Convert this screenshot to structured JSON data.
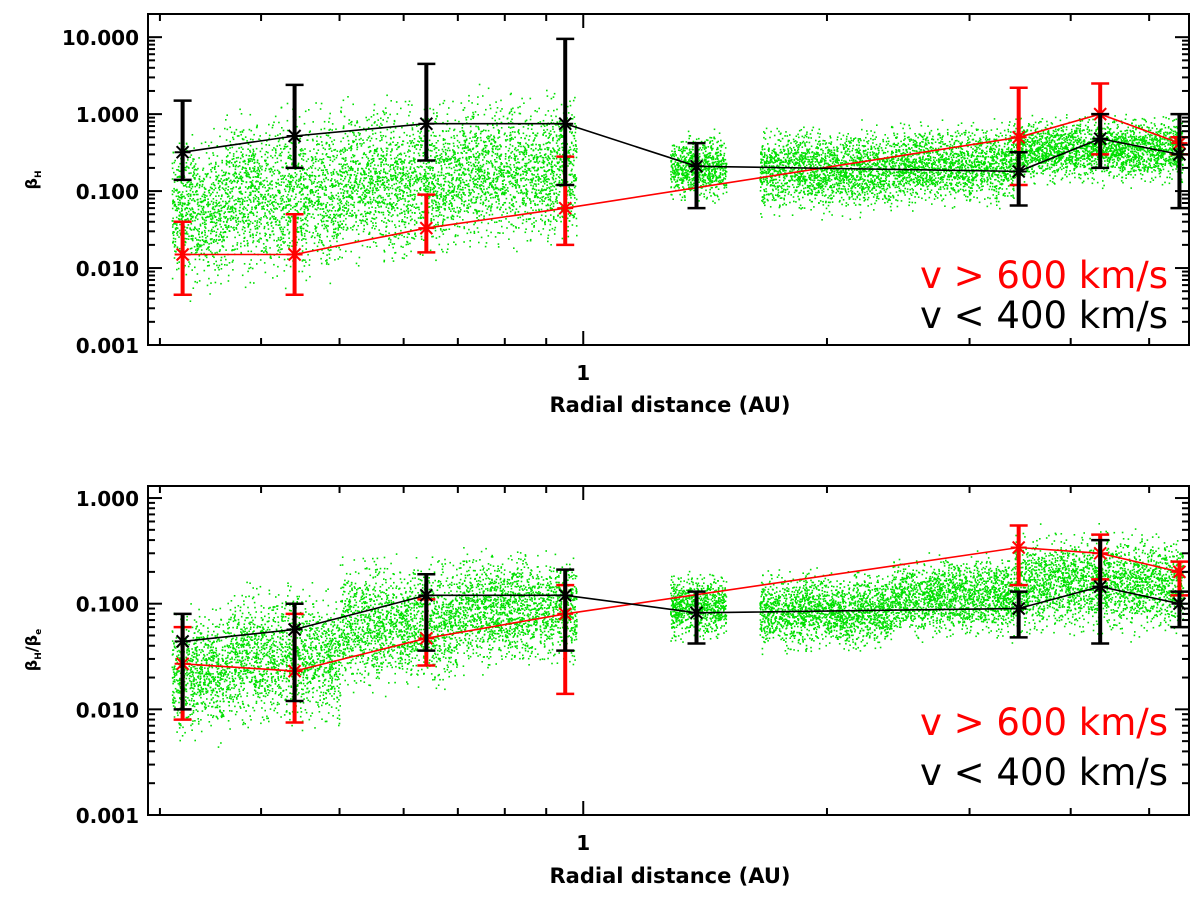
{
  "colors": {
    "background": "#ffffff",
    "fast": "#ff0000",
    "slow": "#000000",
    "scatter": "#00e000",
    "axis": "#000000"
  },
  "chart_data": [
    {
      "type": "scatter",
      "xscale": "log",
      "yscale": "log",
      "xlim": [
        0.29,
        5.6
      ],
      "ylim": [
        0.001,
        20
      ],
      "xlabel": "Radial distance (AU)",
      "ylabel": "β_H",
      "ylabel_main": "β",
      "ylabel_sub": "H",
      "xticks": [
        1
      ],
      "xtick_labels": [
        "1"
      ],
      "yticks": [
        0.001,
        0.01,
        0.1,
        1,
        10
      ],
      "ytick_labels": [
        "0.001",
        "0.010",
        "0.100",
        "1.000",
        "10.000"
      ],
      "legend": [
        {
          "label": "v > 600 km/s",
          "color": "#ff0000"
        },
        {
          "label": "v < 400 km/s",
          "color": "#000000"
        }
      ],
      "legend_position": "lower-right",
      "scatter_clusters": [
        {
          "x": [
            0.31,
            0.36
          ],
          "y": [
            0.003,
            1.0
          ]
        },
        {
          "x": [
            0.36,
            0.5
          ],
          "y": [
            0.004,
            2.0
          ]
        },
        {
          "x": [
            0.5,
            0.7
          ],
          "y": [
            0.008,
            2.5
          ]
        },
        {
          "x": [
            0.7,
            0.98
          ],
          "y": [
            0.012,
            3.0
          ]
        },
        {
          "x": [
            1.28,
            1.5
          ],
          "y": [
            0.06,
            0.7
          ]
        },
        {
          "x": [
            1.65,
            2.4
          ],
          "y": [
            0.04,
            0.9
          ]
        },
        {
          "x": [
            2.4,
            3.4
          ],
          "y": [
            0.05,
            1.0
          ]
        },
        {
          "x": [
            3.4,
            5.5
          ],
          "y": [
            0.1,
            1.2
          ]
        }
      ],
      "series": [
        {
          "name": "v > 600 km/s",
          "color": "#ff0000",
          "points": [
            {
              "x": 0.32,
              "y": 0.015,
              "lo": 0.0045,
              "hi": 0.04
            },
            {
              "x": 0.44,
              "y": 0.015,
              "lo": 0.0045,
              "hi": 0.05
            },
            {
              "x": 0.64,
              "y": 0.033,
              "lo": 0.016,
              "hi": 0.09
            },
            {
              "x": 0.95,
              "y": 0.06,
              "lo": 0.02,
              "hi": 0.28
            },
            {
              "x": 3.45,
              "y": 0.5,
              "lo": 0.12,
              "hi": 2.2
            },
            {
              "x": 4.35,
              "y": 1.0,
              "lo": 0.3,
              "hi": 2.5
            },
            {
              "x": 5.45,
              "y": 0.42,
              "lo": 0.3,
              "hi": 0.5
            }
          ]
        },
        {
          "name": "v < 400 km/s",
          "color": "#000000",
          "points": [
            {
              "x": 0.32,
              "y": 0.32,
              "lo": 0.14,
              "hi": 1.5
            },
            {
              "x": 0.44,
              "y": 0.52,
              "lo": 0.2,
              "hi": 2.4
            },
            {
              "x": 0.64,
              "y": 0.75,
              "lo": 0.25,
              "hi": 4.5
            },
            {
              "x": 0.95,
              "y": 0.75,
              "lo": 0.12,
              "hi": 9.5
            },
            {
              "x": 1.38,
              "y": 0.21,
              "lo": 0.06,
              "hi": 0.42
            },
            {
              "x": 3.45,
              "y": 0.18,
              "lo": 0.065,
              "hi": 0.32
            },
            {
              "x": 4.35,
              "y": 0.48,
              "lo": 0.2,
              "hi": 1.0
            },
            {
              "x": 5.45,
              "y": 0.3,
              "lo": 0.06,
              "hi": 1.0
            }
          ]
        }
      ]
    },
    {
      "type": "scatter",
      "xscale": "log",
      "yscale": "log",
      "xlim": [
        0.29,
        5.6
      ],
      "ylim": [
        0.001,
        1.3
      ],
      "xlabel": "Radial distance (AU)",
      "ylabel": "β_H/β_e",
      "ylabel_main": "β",
      "ylabel_sub": "H",
      "ylabel_main2": "β",
      "ylabel_sub2": "e",
      "xticks": [
        1
      ],
      "xtick_labels": [
        "1"
      ],
      "yticks": [
        0.001,
        0.01,
        0.1,
        1
      ],
      "ytick_labels": [
        "0.001",
        "0.010",
        "0.100",
        "1.000"
      ],
      "legend": [
        {
          "label": "v > 600 km/s",
          "color": "#ff0000"
        },
        {
          "label": "v < 400 km/s",
          "color": "#000000"
        }
      ],
      "legend_position": "lower-right",
      "scatter_clusters": [
        {
          "x": [
            0.31,
            0.36
          ],
          "y": [
            0.004,
            0.12
          ]
        },
        {
          "x": [
            0.36,
            0.5
          ],
          "y": [
            0.005,
            0.2
          ]
        },
        {
          "x": [
            0.5,
            0.7
          ],
          "y": [
            0.012,
            0.35
          ]
        },
        {
          "x": [
            0.7,
            0.98
          ],
          "y": [
            0.02,
            0.4
          ]
        },
        {
          "x": [
            1.28,
            1.5
          ],
          "y": [
            0.04,
            0.22
          ]
        },
        {
          "x": [
            1.65,
            2.4
          ],
          "y": [
            0.03,
            0.25
          ]
        },
        {
          "x": [
            2.4,
            3.4
          ],
          "y": [
            0.04,
            0.35
          ]
        },
        {
          "x": [
            3.4,
            5.5
          ],
          "y": [
            0.04,
            0.6
          ]
        }
      ],
      "series": [
        {
          "name": "v > 600 km/s",
          "color": "#ff0000",
          "points": [
            {
              "x": 0.32,
              "y": 0.027,
              "lo": 0.008,
              "hi": 0.06
            },
            {
              "x": 0.44,
              "y": 0.023,
              "lo": 0.0075,
              "hi": 0.08
            },
            {
              "x": 0.64,
              "y": 0.047,
              "lo": 0.026,
              "hi": 0.11
            },
            {
              "x": 0.95,
              "y": 0.08,
              "lo": 0.014,
              "hi": 0.15
            },
            {
              "x": 3.45,
              "y": 0.34,
              "lo": 0.15,
              "hi": 0.55
            },
            {
              "x": 4.35,
              "y": 0.3,
              "lo": 0.17,
              "hi": 0.45
            },
            {
              "x": 5.45,
              "y": 0.2,
              "lo": 0.12,
              "hi": 0.25
            }
          ]
        },
        {
          "name": "v < 400 km/s",
          "color": "#000000",
          "points": [
            {
              "x": 0.32,
              "y": 0.044,
              "lo": 0.01,
              "hi": 0.08
            },
            {
              "x": 0.44,
              "y": 0.057,
              "lo": 0.012,
              "hi": 0.1
            },
            {
              "x": 0.64,
              "y": 0.12,
              "lo": 0.036,
              "hi": 0.19
            },
            {
              "x": 0.95,
              "y": 0.12,
              "lo": 0.036,
              "hi": 0.21
            },
            {
              "x": 1.38,
              "y": 0.082,
              "lo": 0.042,
              "hi": 0.13
            },
            {
              "x": 3.45,
              "y": 0.09,
              "lo": 0.048,
              "hi": 0.13
            },
            {
              "x": 4.35,
              "y": 0.145,
              "lo": 0.042,
              "hi": 0.4
            },
            {
              "x": 5.45,
              "y": 0.1,
              "lo": 0.06,
              "hi": 0.13
            }
          ]
        }
      ]
    }
  ]
}
